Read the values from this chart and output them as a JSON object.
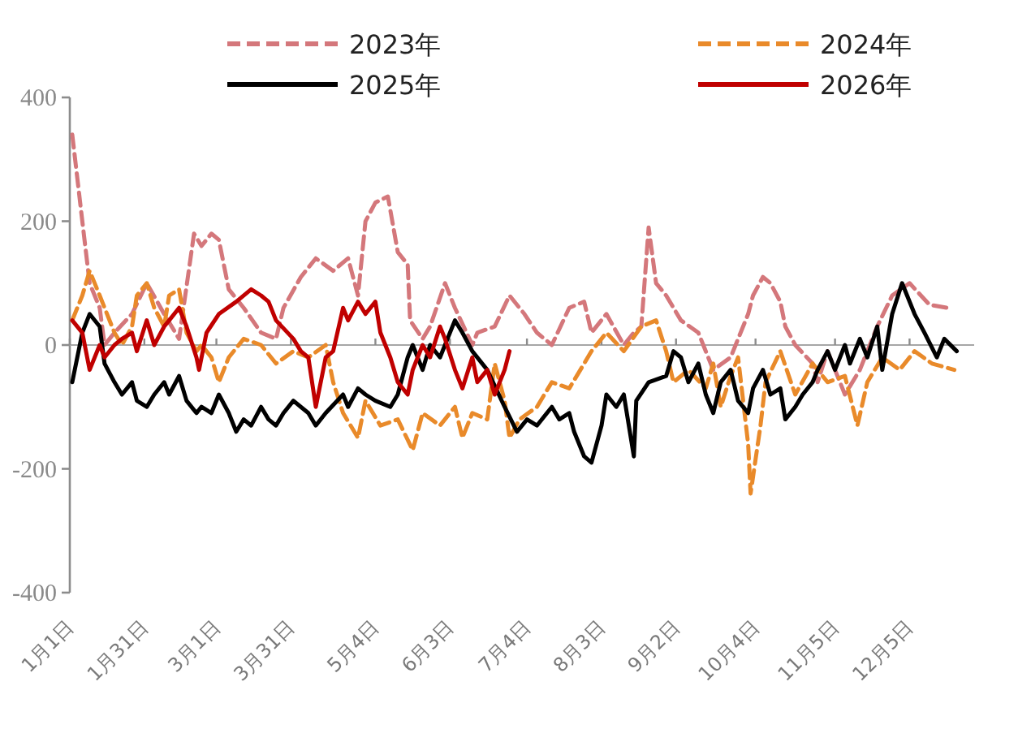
{
  "chart_data": {
    "type": "line",
    "legend": "top",
    "xlim": [
      "--01-01",
      "--12-31"
    ],
    "ylim": [
      -400,
      400
    ],
    "yticks": [
      -400,
      -200,
      0,
      200,
      400
    ],
    "xticks": [
      {
        "value": "--01-01",
        "label": "1月1日"
      },
      {
        "value": "--01-31",
        "label": "1月31日"
      },
      {
        "value": "--03-01",
        "label": "3月1日"
      },
      {
        "value": "--03-31",
        "label": "3月31日"
      },
      {
        "value": "--05-04",
        "label": "5月4日"
      },
      {
        "value": "--06-03",
        "label": "6月3日"
      },
      {
        "value": "--07-04",
        "label": "7月4日"
      },
      {
        "value": "--08-03",
        "label": "8月3日"
      },
      {
        "value": "--09-02",
        "label": "9月2日"
      },
      {
        "value": "--10-04",
        "label": "10月4日"
      },
      {
        "value": "--11-05",
        "label": "11月5日"
      },
      {
        "value": "--12-05",
        "label": "12月5日"
      }
    ],
    "series": [
      {
        "name": "2023年",
        "color": "#d4777b",
        "line_style": "dashed",
        "x": [
          "--01-02",
          "--01-06",
          "--01-09",
          "--01-13",
          "--01-15",
          "--01-19",
          "--01-26",
          "--02-01",
          "--02-08",
          "--02-14",
          "--02-20",
          "--02-23",
          "--02-27",
          "--03-02",
          "--03-06",
          "--03-12",
          "--03-19",
          "--03-25",
          "--03-28",
          "--04-04",
          "--04-10",
          "--04-17",
          "--04-23",
          "--04-27",
          "--04-30",
          "--05-04",
          "--05-09",
          "--05-13",
          "--05-17",
          "--05-18",
          "--05-23",
          "--05-26",
          "--06-01",
          "--06-05",
          "--06-12",
          "--06-14",
          "--06-21",
          "--06-27",
          "--07-03",
          "--07-08",
          "--07-14",
          "--07-21",
          "--07-27",
          "--07-30",
          "--08-05",
          "--08-12",
          "--08-16",
          "--08-19",
          "--08-22",
          "--08-25",
          "--08-29",
          "--09-04",
          "--09-11",
          "--09-17",
          "--09-24",
          "--10-01",
          "--10-03",
          "--10-07",
          "--10-10",
          "--10-14",
          "--10-16",
          "--10-20",
          "--10-27",
          "--10-29",
          "--11-02",
          "--11-05",
          "--11-09",
          "--11-15",
          "--11-22",
          "--11-28",
          "--12-05",
          "--12-13",
          "--12-20"
        ],
        "values": [
          340,
          200,
          100,
          60,
          0,
          20,
          50,
          100,
          50,
          10,
          180,
          160,
          180,
          170,
          90,
          60,
          20,
          10,
          60,
          110,
          140,
          120,
          140,
          80,
          200,
          230,
          240,
          150,
          130,
          40,
          10,
          30,
          100,
          60,
          0,
          20,
          30,
          80,
          50,
          20,
          0,
          60,
          70,
          20,
          50,
          0,
          20,
          30,
          190,
          100,
          80,
          40,
          20,
          -40,
          -20,
          50,
          80,
          110,
          100,
          70,
          30,
          0,
          -30,
          -60,
          -10,
          -40,
          -80,
          -40,
          30,
          80,
          100,
          65,
          60
        ]
      },
      {
        "name": "2024年",
        "color": "#e98a2a",
        "line_style": "dashed",
        "x": [
          "--01-02",
          "--01-06",
          "--01-09",
          "--01-13",
          "--01-15",
          "--01-19",
          "--01-22",
          "--01-26",
          "--01-28",
          "--02-01",
          "--02-04",
          "--02-08",
          "--02-10",
          "--02-14",
          "--02-17",
          "--02-21",
          "--02-23",
          "--02-27",
          "--03-02",
          "--03-06",
          "--03-12",
          "--03-19",
          "--03-25",
          "--04-01",
          "--04-07",
          "--04-14",
          "--04-17",
          "--04-21",
          "--04-27",
          "--04-30",
          "--05-06",
          "--05-13",
          "--05-19",
          "--05-23",
          "--05-30",
          "--06-05",
          "--06-08",
          "--06-12",
          "--06-18",
          "--06-21",
          "--06-25",
          "--06-27",
          "--07-01",
          "--07-08",
          "--07-14",
          "--07-21",
          "--07-27",
          "--07-30",
          "--08-05",
          "--08-12",
          "--08-19",
          "--08-25",
          "--08-29",
          "--09-01",
          "--09-07",
          "--09-14",
          "--09-17",
          "--09-20",
          "--09-24",
          "--09-27",
          "--10-01",
          "--10-02",
          "--10-06",
          "--10-08",
          "--10-14",
          "--10-20",
          "--10-27",
          "--11-02",
          "--11-09",
          "--11-14",
          "--11-18",
          "--11-24",
          "--12-01",
          "--12-07",
          "--12-14",
          "--12-23"
        ],
        "values": [
          40,
          80,
          120,
          80,
          60,
          20,
          0,
          30,
          80,
          100,
          60,
          30,
          80,
          90,
          20,
          -10,
          0,
          -20,
          -60,
          -20,
          10,
          0,
          -30,
          -10,
          -20,
          0,
          -60,
          -110,
          -150,
          -90,
          -130,
          -120,
          -170,
          -110,
          -130,
          -100,
          -150,
          -110,
          -120,
          -30,
          -90,
          -150,
          -120,
          -100,
          -60,
          -70,
          -30,
          -10,
          20,
          -10,
          30,
          40,
          -10,
          -60,
          -40,
          -70,
          -30,
          -100,
          -50,
          -20,
          -160,
          -240,
          -130,
          -60,
          -10,
          -80,
          -30,
          -60,
          -50,
          -130,
          -60,
          -20,
          -40,
          -10,
          -30,
          -40
        ]
      },
      {
        "name": "2025年",
        "color": "#000000",
        "line_style": "solid",
        "x": [
          "--01-02",
          "--01-06",
          "--01-09",
          "--01-13",
          "--01-15",
          "--01-19",
          "--01-22",
          "--01-26",
          "--01-28",
          "--02-01",
          "--02-04",
          "--02-08",
          "--02-10",
          "--02-14",
          "--02-17",
          "--02-21",
          "--02-23",
          "--02-27",
          "--03-02",
          "--03-06",
          "--03-09",
          "--03-12",
          "--03-15",
          "--03-19",
          "--03-22",
          "--03-25",
          "--03-28",
          "--04-01",
          "--04-04",
          "--04-07",
          "--04-10",
          "--04-14",
          "--04-21",
          "--04-23",
          "--04-27",
          "--04-30",
          "--05-04",
          "--05-10",
          "--05-13",
          "--05-17",
          "--05-19",
          "--05-23",
          "--05-26",
          "--05-30",
          "--06-05",
          "--06-08",
          "--06-12",
          "--06-18",
          "--06-25",
          "--06-30",
          "--07-04",
          "--07-08",
          "--07-14",
          "--07-17",
          "--07-21",
          "--07-23",
          "--07-27",
          "--07-30",
          "--08-03",
          "--08-05",
          "--08-09",
          "--08-12",
          "--08-16",
          "--08-17",
          "--08-22",
          "--08-29",
          "--09-01",
          "--09-04",
          "--09-07",
          "--09-11",
          "--09-14",
          "--09-17",
          "--09-20",
          "--09-24",
          "--09-27",
          "--10-01",
          "--10-03",
          "--10-07",
          "--10-10",
          "--10-14",
          "--10-16",
          "--10-20",
          "--10-23",
          "--10-27",
          "--10-29",
          "--11-02",
          "--11-05",
          "--11-09",
          "--11-11",
          "--11-15",
          "--11-18",
          "--11-22",
          "--11-24",
          "--11-28",
          "--12-02",
          "--12-07",
          "--12-11",
          "--12-16",
          "--12-19",
          "--12-24"
        ],
        "values": [
          -60,
          20,
          50,
          30,
          -30,
          -60,
          -80,
          -60,
          -90,
          -100,
          -80,
          -60,
          -80,
          -50,
          -90,
          -110,
          -100,
          -110,
          -80,
          -110,
          -140,
          -120,
          -130,
          -100,
          -120,
          -130,
          -110,
          -90,
          -100,
          -110,
          -130,
          -110,
          -80,
          -100,
          -70,
          -80,
          -90,
          -100,
          -80,
          -20,
          0,
          -40,
          0,
          -20,
          40,
          20,
          -10,
          -40,
          -100,
          -140,
          -120,
          -130,
          -100,
          -120,
          -110,
          -140,
          -180,
          -190,
          -130,
          -80,
          -100,
          -80,
          -180,
          -90,
          -60,
          -50,
          -10,
          -20,
          -60,
          -30,
          -80,
          -110,
          -60,
          -40,
          -90,
          -110,
          -70,
          -40,
          -80,
          -70,
          -120,
          -100,
          -80,
          -60,
          -40,
          -10,
          -40,
          0,
          -30,
          10,
          -20,
          30,
          -40,
          50,
          100,
          50,
          20,
          -20,
          10,
          -10
        ]
      },
      {
        "name": "2026年",
        "color": "#c00000",
        "line_style": "solid",
        "x": [
          "--01-02",
          "--01-06",
          "--01-09",
          "--01-13",
          "--01-15",
          "--01-19",
          "--01-22",
          "--01-26",
          "--01-28",
          "--02-01",
          "--02-04",
          "--02-08",
          "--02-10",
          "--02-14",
          "--02-17",
          "--02-21",
          "--02-22",
          "--02-25",
          "--03-02",
          "--03-09",
          "--03-15",
          "--03-19",
          "--03-22",
          "--03-25",
          "--04-01",
          "--04-04",
          "--04-07",
          "--04-10",
          "--04-14",
          "--04-17",
          "--04-21",
          "--04-23",
          "--04-27",
          "--04-30",
          "--05-04",
          "--05-06",
          "--05-10",
          "--05-13",
          "--05-17",
          "--05-19",
          "--05-23",
          "--05-26",
          "--05-30",
          "--06-01",
          "--06-05",
          "--06-08",
          "--06-12",
          "--06-14",
          "--06-18",
          "--06-21",
          "--06-25",
          "--06-27"
        ],
        "values": [
          40,
          20,
          -40,
          0,
          -20,
          0,
          10,
          20,
          -10,
          40,
          0,
          30,
          40,
          60,
          30,
          -20,
          -40,
          20,
          50,
          70,
          90,
          80,
          70,
          40,
          10,
          -10,
          -20,
          -100,
          -20,
          -10,
          60,
          40,
          70,
          50,
          70,
          20,
          -20,
          -60,
          -80,
          -40,
          0,
          -20,
          30,
          10,
          -40,
          -70,
          -20,
          -60,
          -40,
          -80,
          -40,
          -10
        ]
      }
    ]
  }
}
